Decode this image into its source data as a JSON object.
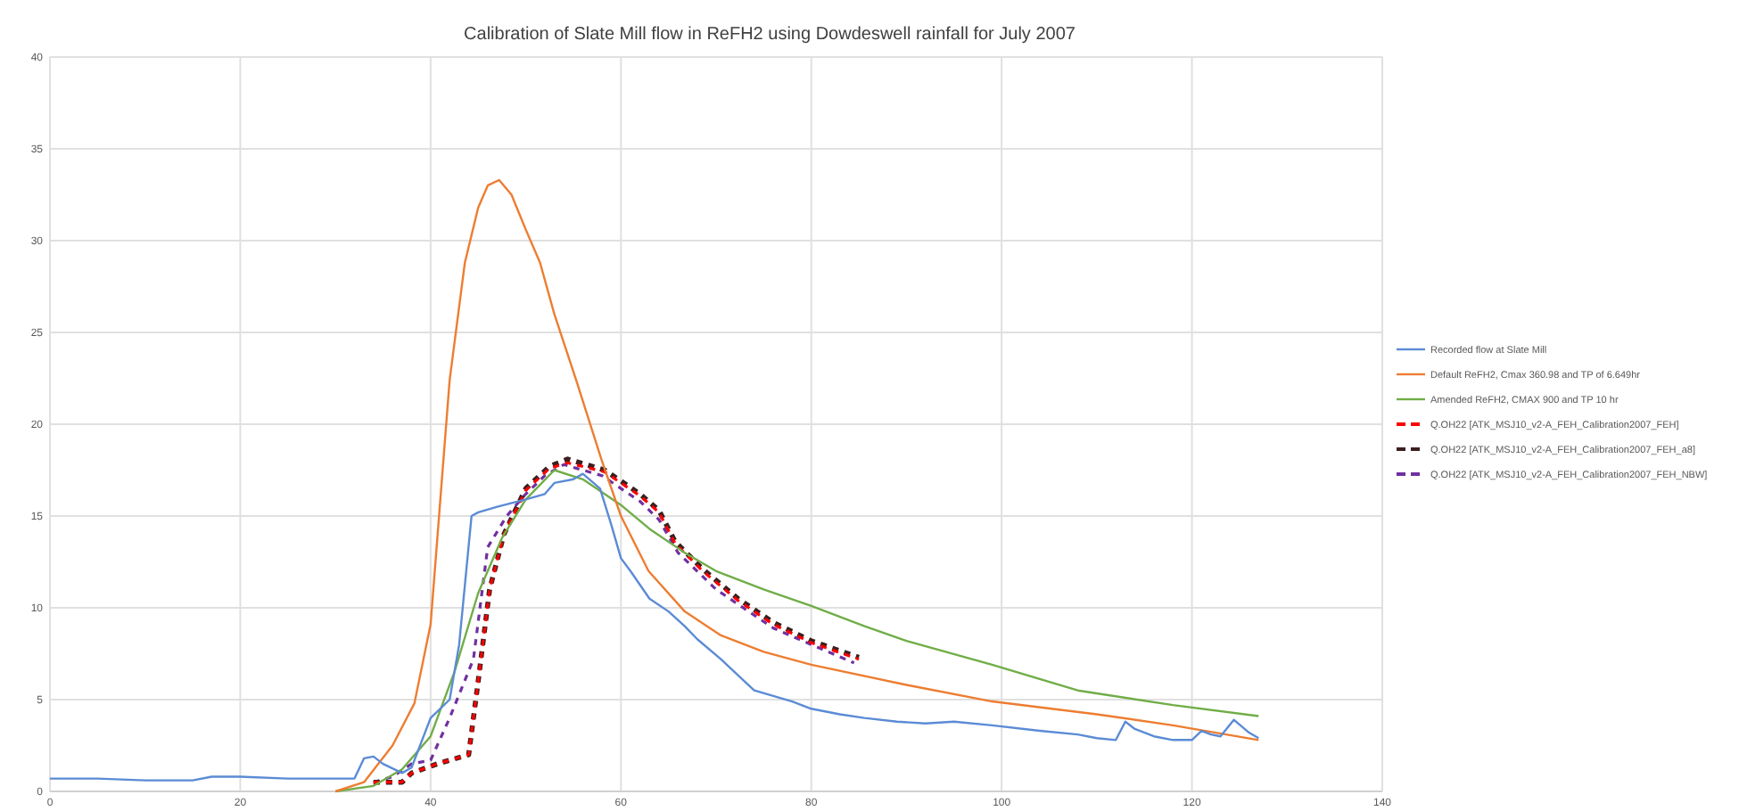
{
  "chart_data": {
    "type": "line",
    "title": "Calibration of Slate Mill flow in ReFH2 using Dowdeswell rainfall for July 2007",
    "xlim": [
      0,
      140
    ],
    "xticks": [
      0,
      20,
      40,
      60,
      80,
      100,
      120,
      140
    ],
    "ylim": [
      0,
      40
    ],
    "yticks": [
      0,
      5,
      10,
      15,
      20,
      25,
      30,
      35,
      40
    ],
    "grid": true,
    "legend": "right",
    "marker": "none",
    "series": [
      {
        "name": "Recorded flow at Slate Mill",
        "color": "#5b8bd5",
        "line_style": "solid",
        "x": [
          0,
          5,
          10,
          15,
          17,
          20,
          25,
          30,
          32,
          33,
          34,
          35,
          37,
          38,
          40,
          42,
          43,
          44.3,
          45,
          47,
          50,
          52,
          53,
          55,
          56,
          57.8,
          59,
          60,
          61,
          63,
          65,
          66.7,
          68,
          70.5,
          74,
          76,
          78,
          80,
          83,
          85.6,
          89,
          92,
          95,
          99,
          104,
          108,
          110,
          112,
          113,
          114,
          116,
          118,
          120,
          121,
          122,
          123,
          124.4,
          126,
          127
        ],
        "values": [
          0.7,
          0.7,
          0.6,
          0.6,
          0.8,
          0.8,
          0.7,
          0.7,
          0.7,
          1.8,
          1.9,
          1.5,
          1.0,
          1.3,
          4.0,
          5.0,
          8.0,
          15.0,
          15.2,
          15.5,
          15.9,
          16.2,
          16.8,
          17.0,
          17.3,
          16.5,
          14.5,
          12.7,
          12.0,
          10.5,
          9.8,
          9.0,
          8.3,
          7.2,
          5.5,
          5.2,
          4.9,
          4.5,
          4.2,
          4.0,
          3.8,
          3.7,
          3.8,
          3.6,
          3.3,
          3.1,
          2.9,
          2.8,
          3.8,
          3.4,
          3.0,
          2.8,
          2.8,
          3.3,
          3.1,
          3.0,
          3.9,
          3.2,
          2.9
        ]
      },
      {
        "name": "Default ReFH2, Cmax 360.98 and TP of 6.649hr",
        "color": "#ed7d31",
        "line_style": "solid",
        "x": [
          30,
          33,
          36,
          38.3,
          40,
          42,
          43.6,
          45,
          46,
          47.2,
          48.5,
          50,
          51.5,
          53,
          55.3,
          58,
          60,
          62.9,
          66.7,
          70.5,
          75,
          80,
          90,
          99,
          110,
          118,
          127
        ],
        "values": [
          0,
          0.5,
          2.5,
          4.8,
          9.1,
          22.4,
          28.8,
          31.8,
          33.0,
          33.3,
          32.5,
          30.6,
          28.8,
          26.0,
          22.4,
          18.0,
          15.0,
          12.0,
          9.8,
          8.5,
          7.6,
          6.9,
          5.8,
          4.9,
          4.2,
          3.6,
          2.8
        ]
      },
      {
        "name": "Amended ReFH2, CMAX 900 and TP 10 hr",
        "color": "#70ad47",
        "line_style": "solid",
        "x": [
          30,
          34,
          37,
          40,
          42.5,
          45,
          47.5,
          50,
          53,
          56,
          60,
          63,
          66.7,
          70,
          75,
          80,
          85.6,
          90,
          99,
          108,
          118,
          127
        ],
        "values": [
          0,
          0.3,
          1.2,
          3.0,
          6.5,
          10.8,
          13.8,
          15.9,
          17.5,
          17.0,
          15.6,
          14.3,
          13.0,
          12.0,
          11.0,
          10.1,
          9.0,
          8.2,
          6.9,
          5.5,
          4.7,
          4.1
        ]
      },
      {
        "name": "Q.OH22 [ATK_MSJ10_v2-A_FEH_Calibration2007_FEH]",
        "color": "#ff0000",
        "line_style": "dashed",
        "x": [
          34,
          37,
          38,
          40.7,
          44,
          45,
          46.2,
          47.7,
          50,
          52.5,
          54.4,
          58.3,
          62,
          64,
          65.7,
          68.6,
          72.3,
          76,
          80,
          85
        ],
        "values": [
          0.5,
          0.5,
          1.0,
          1.5,
          2.0,
          6.0,
          11.0,
          14.0,
          16.4,
          17.6,
          17.9,
          17.4,
          16.1,
          15.2,
          13.5,
          12.0,
          10.4,
          9.1,
          8.1,
          7.2
        ]
      },
      {
        "name": "Q.OH22 [ATK_MSJ10_v2-A_FEH_Calibration2007_FEH_a8]",
        "color": "#3b1f1f",
        "line_style": "dashed",
        "x": [
          34,
          37,
          38,
          40.7,
          44,
          45,
          46.2,
          47.7,
          50,
          52.5,
          54.4,
          58.3,
          62,
          64,
          65.7,
          68.6,
          72.3,
          76,
          80,
          85
        ],
        "values": [
          0.5,
          0.5,
          1.0,
          1.5,
          2.0,
          6.0,
          11.0,
          14.0,
          16.5,
          17.7,
          18.1,
          17.5,
          16.2,
          15.3,
          13.6,
          12.1,
          10.5,
          9.2,
          8.2,
          7.3
        ]
      },
      {
        "name": "Q.OH22 [ATK_MSJ10_v2-A_FEH_Calibration2007_FEH_NBW]",
        "color": "#7030a0",
        "line_style": "dashed",
        "x": [
          34,
          36,
          38,
          40,
          42,
          44.5,
          46,
          48,
          50,
          52,
          54,
          58,
          62,
          64,
          66,
          70,
          76,
          80,
          84.5
        ],
        "values": [
          0.5,
          0.8,
          1.5,
          1.7,
          4.0,
          7.2,
          13.3,
          15.0,
          16.2,
          17.2,
          17.8,
          17.2,
          15.8,
          14.8,
          13.0,
          11.0,
          8.9,
          8.0,
          7.0
        ]
      }
    ]
  }
}
